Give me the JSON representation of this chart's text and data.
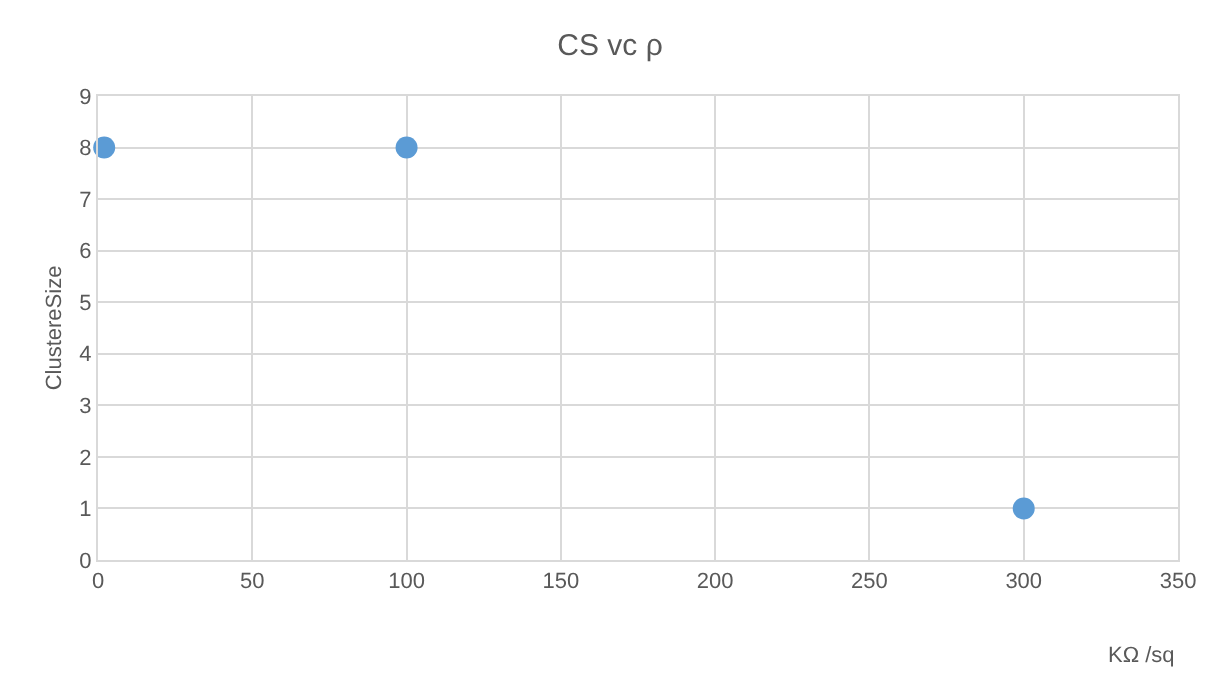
{
  "chart_data": {
    "type": "scatter",
    "title": "CS vc ρ",
    "xlabel": "KΩ /sq",
    "ylabel": "ClustereSize",
    "x": [
      2,
      100,
      300
    ],
    "series": [
      {
        "color": "#5b9bd5",
        "values": [
          8,
          8,
          1
        ]
      }
    ],
    "xlim": [
      0,
      350
    ],
    "xticks": [
      0,
      50,
      100,
      150,
      200,
      250,
      300,
      350
    ],
    "ylim": [
      0,
      9
    ],
    "yticks": [
      0,
      1,
      2,
      3,
      4,
      5,
      6,
      7,
      8,
      9
    ],
    "grid": true,
    "marker": "circle",
    "legend": false
  }
}
